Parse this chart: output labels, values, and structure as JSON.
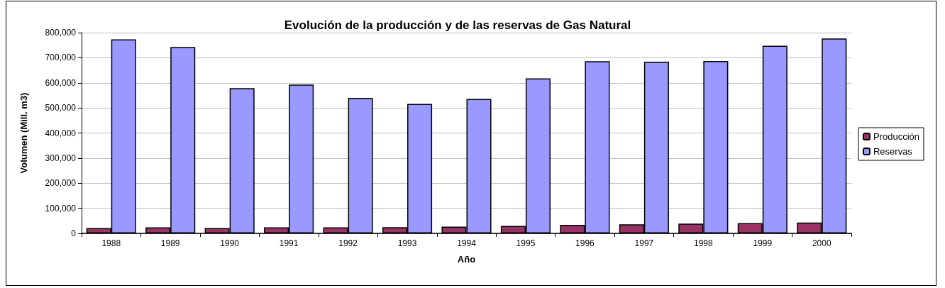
{
  "chart_data": {
    "type": "bar",
    "title": "Evolución de la producción y de las reservas de Gas Natural",
    "xlabel": "Año",
    "ylabel": "Volumen (Mill. m3)",
    "categories": [
      "1988",
      "1989",
      "1990",
      "1991",
      "1992",
      "1993",
      "1994",
      "1995",
      "1996",
      "1997",
      "1998",
      "1999",
      "2000"
    ],
    "series": [
      {
        "name": "Producción",
        "color": "#993366",
        "values": [
          21000,
          24000,
          21000,
          24000,
          24000,
          25000,
          27000,
          30000,
          34000,
          36000,
          39000,
          41000,
          43000
        ]
      },
      {
        "name": "Reservas",
        "color": "#9999ff",
        "values": [
          773000,
          743000,
          579000,
          593000,
          540000,
          516000,
          536000,
          618000,
          686000,
          684000,
          687000,
          748000,
          777000
        ]
      }
    ],
    "ylim": [
      0,
      800000
    ],
    "yticks": [
      {
        "value": 0,
        "label": "0"
      },
      {
        "value": 100000,
        "label": "100,000"
      },
      {
        "value": 200000,
        "label": "200,000"
      },
      {
        "value": 300000,
        "label": "300,000"
      },
      {
        "value": 400000,
        "label": "400,000"
      },
      {
        "value": 500000,
        "label": "500,000"
      },
      {
        "value": 600000,
        "label": "600,000"
      },
      {
        "value": 700000,
        "label": "700,000"
      },
      {
        "value": 800000,
        "label": "800,000"
      }
    ],
    "grid": "y",
    "legend": "right"
  }
}
